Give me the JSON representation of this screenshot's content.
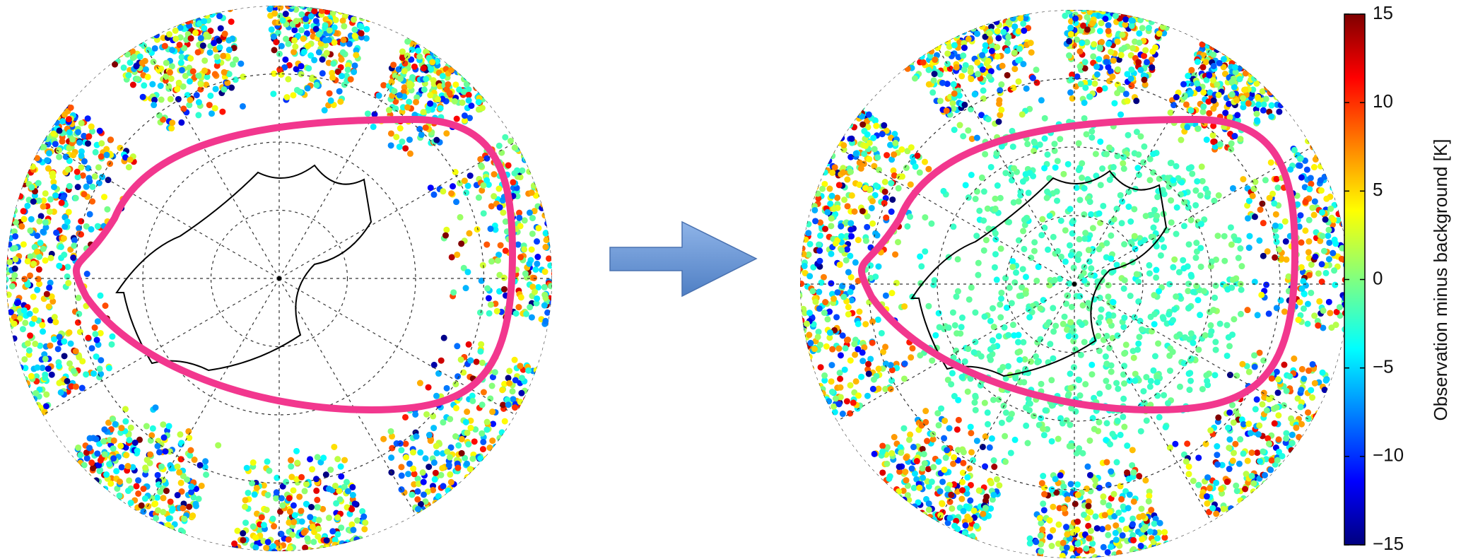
{
  "colorbar": {
    "label": "Observation minus background [K]",
    "lim": [
      -15,
      15
    ],
    "ticks": [
      {
        "value": 15,
        "label": "15"
      },
      {
        "value": 10,
        "label": "10"
      },
      {
        "value": 5,
        "label": "5"
      },
      {
        "value": 0,
        "label": "0"
      },
      {
        "value": -5,
        "label": "−5"
      },
      {
        "value": -10,
        "label": "−10"
      },
      {
        "value": -15,
        "label": "−15"
      }
    ]
  }
}
